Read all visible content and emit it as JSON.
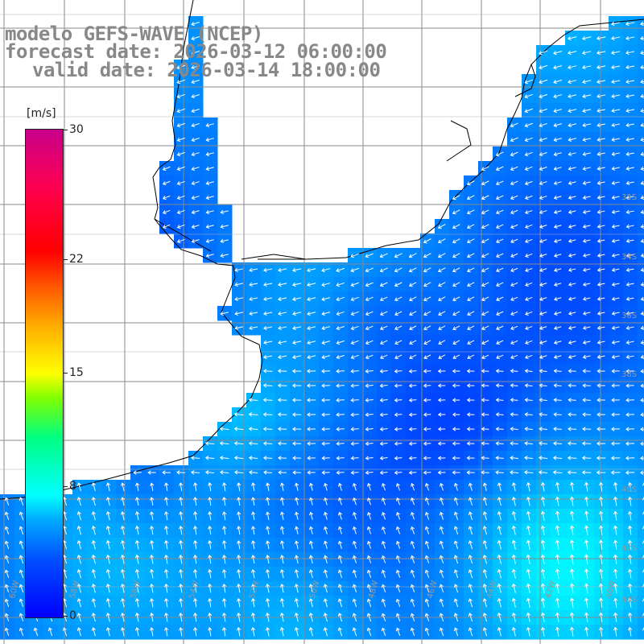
{
  "title": {
    "line1": "modelo GEFS-WAVE (NCEP)",
    "line2": "forecast date: 2026-03-12 06:00:00",
    "line3": "valid date: 2026-03-14 18:00:00"
  },
  "colorbar": {
    "unit": "[m/s]",
    "ticks": [
      {
        "label": "30",
        "value": 30
      },
      {
        "label": "22",
        "value": 22
      },
      {
        "label": "15",
        "value": 15
      },
      {
        "label": "8",
        "value": 8
      },
      {
        "label": "0",
        "value": 0
      }
    ],
    "colors": [
      "#0000ff",
      "#00aaff",
      "#00ffff",
      "#00ff80",
      "#ffff00",
      "#ff5500",
      "#ff0000",
      "#c8008a"
    ]
  },
  "map": {
    "lon_range": [
      -60,
      -40
    ],
    "lat_range": [
      -50,
      -30
    ],
    "lon_labels": [
      "60W",
      "58W",
      "56W",
      "54W",
      "52W",
      "50W",
      "48W",
      "46W",
      "44W",
      "42W",
      "40W"
    ],
    "lat_labels": [
      "32S",
      "34S",
      "36S",
      "38S",
      "40S",
      "42S",
      "44S"
    ],
    "land_color": "#ffffff",
    "coast_color": "#000000"
  }
}
